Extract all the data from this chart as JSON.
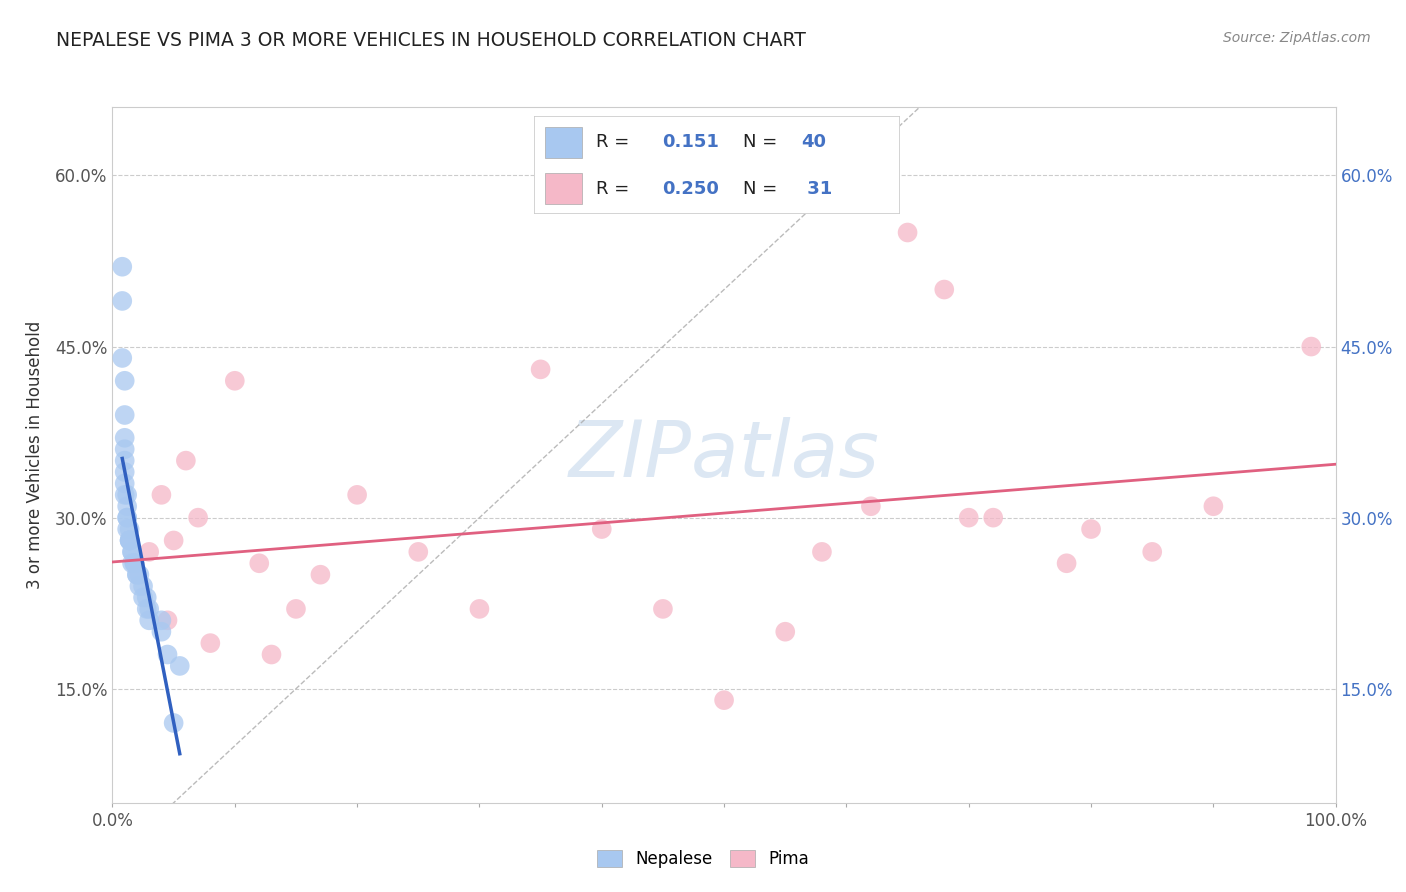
{
  "title": "NEPALESE VS PIMA 3 OR MORE VEHICLES IN HOUSEHOLD CORRELATION CHART",
  "source": "Source: ZipAtlas.com",
  "ylabel": "3 or more Vehicles in Household",
  "blue_color": "#A8C8F0",
  "pink_color": "#F5B8C8",
  "blue_line_color": "#3060C0",
  "pink_line_color": "#E06080",
  "diag_line_color": "#AAAAAA",
  "watermark": "ZIPatlas",
  "watermark_color": "#C5D8EC",
  "legend_r_n": [
    {
      "R": "0.151",
      "N": "40"
    },
    {
      "R": "0.250",
      "N": " 31"
    }
  ],
  "xlim": [
    0.0,
    1.0
  ],
  "ylim": [
    0.05,
    0.66
  ],
  "ytick_positions": [
    0.15,
    0.3,
    0.45,
    0.6
  ],
  "ytick_labels": [
    "15.0%",
    "30.0%",
    "45.0%",
    "60.0%"
  ],
  "nepalese_x": [
    0.008,
    0.008,
    0.008,
    0.01,
    0.01,
    0.01,
    0.01,
    0.01,
    0.01,
    0.01,
    0.01,
    0.012,
    0.012,
    0.012,
    0.012,
    0.012,
    0.014,
    0.014,
    0.014,
    0.014,
    0.016,
    0.016,
    0.016,
    0.018,
    0.018,
    0.02,
    0.02,
    0.022,
    0.022,
    0.025,
    0.025,
    0.028,
    0.028,
    0.03,
    0.03,
    0.04,
    0.04,
    0.045,
    0.05,
    0.055
  ],
  "nepalese_y": [
    0.52,
    0.49,
    0.44,
    0.42,
    0.39,
    0.37,
    0.36,
    0.35,
    0.34,
    0.33,
    0.32,
    0.32,
    0.31,
    0.3,
    0.3,
    0.29,
    0.29,
    0.28,
    0.28,
    0.28,
    0.27,
    0.27,
    0.26,
    0.26,
    0.26,
    0.25,
    0.25,
    0.25,
    0.24,
    0.24,
    0.23,
    0.23,
    0.22,
    0.22,
    0.21,
    0.21,
    0.2,
    0.18,
    0.12,
    0.17
  ],
  "pima_x": [
    0.03,
    0.04,
    0.045,
    0.05,
    0.06,
    0.07,
    0.08,
    0.1,
    0.12,
    0.13,
    0.15,
    0.17,
    0.2,
    0.25,
    0.3,
    0.35,
    0.4,
    0.45,
    0.5,
    0.55,
    0.58,
    0.62,
    0.65,
    0.68,
    0.7,
    0.72,
    0.78,
    0.8,
    0.85,
    0.9,
    0.98
  ],
  "pima_y": [
    0.27,
    0.32,
    0.21,
    0.28,
    0.35,
    0.3,
    0.19,
    0.42,
    0.26,
    0.18,
    0.22,
    0.25,
    0.32,
    0.27,
    0.22,
    0.43,
    0.29,
    0.22,
    0.14,
    0.2,
    0.27,
    0.31,
    0.55,
    0.5,
    0.3,
    0.3,
    0.26,
    0.29,
    0.27,
    0.31,
    0.45
  ]
}
